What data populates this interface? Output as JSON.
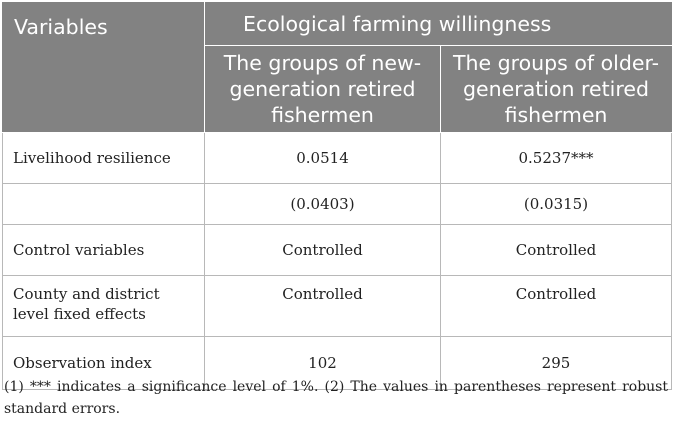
{
  "table": {
    "header": {
      "variables": "Variables",
      "span_title": "Ecological farming willingness",
      "group1": "The groups of new-generation retired fishermen",
      "group2": "The groups of older-generation retired fishermen"
    },
    "rows": [
      {
        "label": "Livelihood resilience",
        "v1": "0.0514",
        "v2": "0.5237***"
      },
      {
        "label": "",
        "v1": "(0.0403)",
        "v2": "(0.0315)"
      },
      {
        "label": "Control variables",
        "v1": "Controlled",
        "v2": "Controlled"
      },
      {
        "label": "County and district level fixed effects",
        "v1": "Controlled",
        "v2": "Controlled"
      },
      {
        "label": "Observation index",
        "v1": "102",
        "v2": "295"
      }
    ]
  },
  "footnote": "(1) *** indicates a significance level of 1%. (2) The values in parentheses represent robust standard errors."
}
